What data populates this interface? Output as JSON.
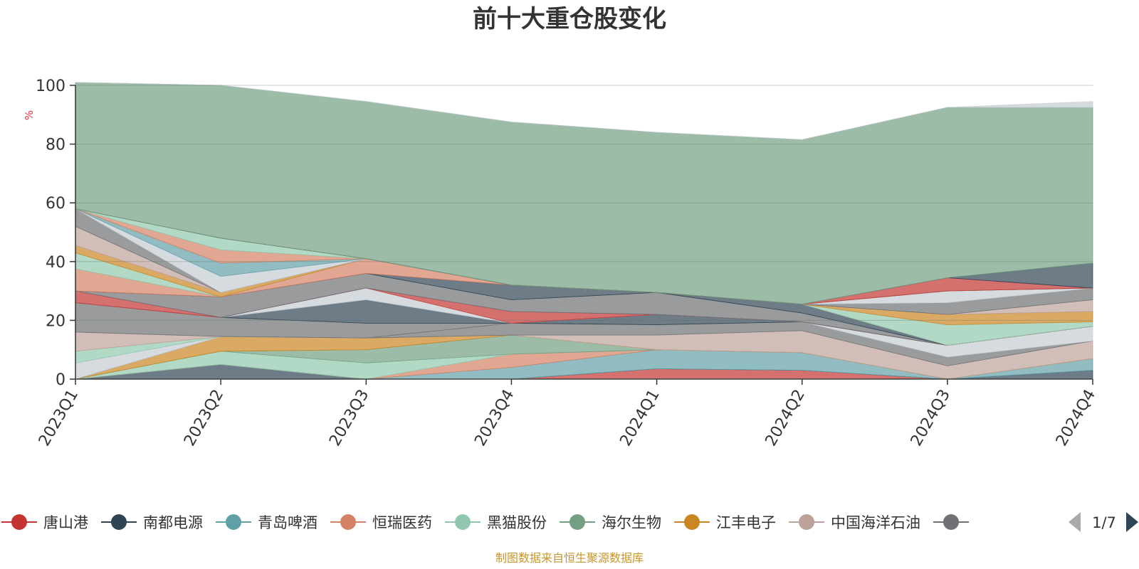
{
  "chart_data": {
    "type": "area",
    "stacked": true,
    "title": "前十大重仓股变化",
    "ylabel": "%",
    "ylim": [
      0,
      100
    ],
    "yticks": [
      0,
      20,
      40,
      60,
      80,
      100
    ],
    "categories": [
      "2023Q1",
      "2023Q2",
      "2023Q3",
      "2023Q4",
      "2024Q1",
      "2024Q2",
      "2024Q3",
      "2024Q4"
    ],
    "grid": true,
    "legend_position": "bottom",
    "legend_page": "1/7",
    "legend_visible_count": 9,
    "series": [
      {
        "name": "唐山港",
        "color": "#c23531",
        "values": [
          0,
          0,
          0,
          0,
          3.5,
          3,
          0,
          0
        ]
      },
      {
        "name": "南都电源",
        "color": "#2f4554",
        "values": [
          0,
          5,
          0,
          0,
          0,
          0,
          0,
          3
        ]
      },
      {
        "name": "青岛啤酒",
        "color": "#61a0a8",
        "values": [
          0,
          0,
          0,
          4,
          6.5,
          6,
          0,
          4
        ]
      },
      {
        "name": "恒瑞医药",
        "color": "#d48265",
        "values": [
          0,
          0,
          0,
          4.5,
          0,
          0,
          0,
          0
        ]
      },
      {
        "name": "黑猫股份",
        "color": "#91c7ae",
        "values": [
          0,
          4.5,
          5.5,
          0,
          0,
          0,
          0,
          0
        ]
      },
      {
        "name": "海尔生物",
        "color": "#749f83",
        "values": [
          0,
          0,
          4.5,
          6.5,
          0,
          0,
          0,
          0
        ]
      },
      {
        "name": "江丰电子",
        "color": "#ca8622",
        "values": [
          0,
          5,
          4,
          0,
          0,
          0,
          0,
          0
        ]
      },
      {
        "name": "中国海洋石油",
        "color": "#bda29a",
        "values": [
          0,
          0,
          0,
          0,
          5,
          7.5,
          4.5,
          6
        ]
      },
      {
        "name": "",
        "color": "#6e7074",
        "values": [
          0,
          0,
          0,
          4,
          3.5,
          3,
          3,
          0
        ]
      },
      {
        "name": "",
        "color": "#c4ccd3",
        "values": [
          5.5,
          0,
          0,
          0,
          0,
          0,
          4,
          5
        ]
      },
      {
        "name": "",
        "color": "#91c7ae",
        "values": [
          4,
          0,
          0,
          0,
          0,
          0,
          0,
          0
        ]
      },
      {
        "name": "",
        "color": "#bda29a",
        "values": [
          6.5,
          0,
          0,
          0,
          0,
          0,
          0,
          0
        ]
      },
      {
        "name": "",
        "color": "#6e7074",
        "values": [
          10,
          6.5,
          5,
          0,
          0,
          0,
          0,
          0
        ]
      },
      {
        "name": "",
        "color": "#2f4554",
        "values": [
          0,
          0,
          8,
          0,
          3.5,
          0,
          0,
          0
        ]
      },
      {
        "name": "",
        "color": "#c4ccd3",
        "values": [
          0,
          0,
          4,
          0,
          0,
          0,
          0,
          0
        ]
      },
      {
        "name": "",
        "color": "#c23531",
        "values": [
          4,
          0,
          0,
          4,
          0,
          0,
          0,
          0
        ]
      },
      {
        "name": "",
        "color": "#6e7074",
        "values": [
          0,
          7,
          5,
          4,
          7.5,
          3,
          0,
          0
        ]
      },
      {
        "name": "",
        "color": "#2f4554",
        "values": [
          0,
          0,
          0,
          5,
          0,
          3,
          0,
          0
        ]
      },
      {
        "name": "",
        "color": "#d48265",
        "values": [
          7.5,
          0,
          5,
          0,
          0,
          0,
          0,
          0
        ]
      },
      {
        "name": "",
        "color": "#91c7ae",
        "values": [
          5.5,
          0,
          0,
          0,
          0,
          0,
          7,
          1.5
        ]
      },
      {
        "name": "",
        "color": "#ca8622",
        "values": [
          2.5,
          1.5,
          0,
          0,
          0,
          0,
          3.5,
          3.5
        ]
      },
      {
        "name": "",
        "color": "#bda29a",
        "values": [
          6.5,
          0,
          0,
          0,
          0,
          0,
          0,
          4
        ]
      },
      {
        "name": "",
        "color": "#6e7074",
        "values": [
          6,
          0,
          0,
          0,
          0,
          0,
          4,
          4
        ]
      },
      {
        "name": "",
        "color": "#c4ccd3",
        "values": [
          0,
          5.5,
          0,
          0,
          0,
          0,
          4,
          0
        ]
      },
      {
        "name": "",
        "color": "#61a0a8",
        "values": [
          0,
          4.5,
          0,
          0,
          0,
          0,
          0,
          0
        ]
      },
      {
        "name": "",
        "color": "#d48265",
        "values": [
          0,
          4.5,
          0,
          0,
          0,
          0,
          0,
          0
        ]
      },
      {
        "name": "",
        "color": "#91c7ae",
        "values": [
          0,
          4,
          0,
          0,
          0,
          0,
          0,
          0
        ]
      },
      {
        "name": "",
        "color": "#c23531",
        "values": [
          0,
          0,
          0,
          0,
          0,
          0,
          4.5,
          0
        ]
      },
      {
        "name": "",
        "color": "#2f4554",
        "values": [
          0,
          0,
          0,
          0,
          0,
          0,
          0,
          8.5
        ]
      },
      {
        "name": "",
        "color": "#749f83",
        "values": [
          43,
          52,
          53.5,
          55.5,
          54.5,
          56,
          58,
          53
        ]
      },
      {
        "name": "",
        "color": "#c4ccd3",
        "values": [
          0,
          0,
          0,
          0,
          0,
          0,
          0,
          2
        ]
      }
    ]
  },
  "source_note": "制图数据来自恒生聚源数据库"
}
